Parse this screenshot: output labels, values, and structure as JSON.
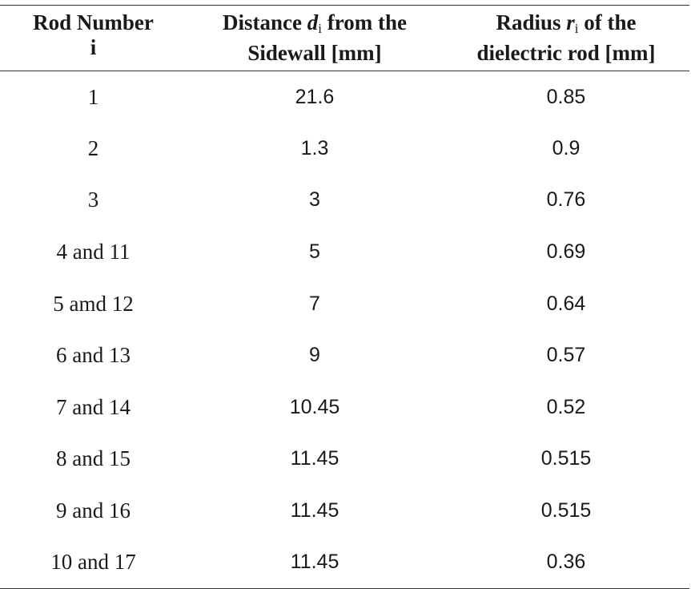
{
  "table": {
    "headers": [
      {
        "line1": "Rod Number",
        "line2": "i"
      },
      {
        "pre": "Distance ",
        "var": "d",
        "sub": "i",
        "post": " from the",
        "line2": "Sidewall [mm]"
      },
      {
        "pre": "Radius ",
        "var": "r",
        "sub": "i",
        "post": " of the",
        "line2": "dielectric rod [mm]"
      }
    ],
    "rows": [
      {
        "rod": "1",
        "distance": "21.6",
        "radius": "0.85"
      },
      {
        "rod": "2",
        "distance": "1.3",
        "radius": "0.9"
      },
      {
        "rod": "3",
        "distance": "3",
        "radius": "0.76"
      },
      {
        "rod": "4 and 11",
        "distance": "5",
        "radius": "0.69"
      },
      {
        "rod": "5 amd 12",
        "distance": "7",
        "radius": "0.64"
      },
      {
        "rod": "6 and 13",
        "distance": "9",
        "radius": "0.57"
      },
      {
        "rod": "7 and 14",
        "distance": "10.45",
        "radius": "0.52"
      },
      {
        "rod": "8 and 15",
        "distance": "11.45",
        "radius": "0.515"
      },
      {
        "rod": "9 and 16",
        "distance": "11.45",
        "radius": "0.515"
      },
      {
        "rod": "10 and 17",
        "distance": "11.45",
        "radius": "0.36"
      }
    ]
  }
}
